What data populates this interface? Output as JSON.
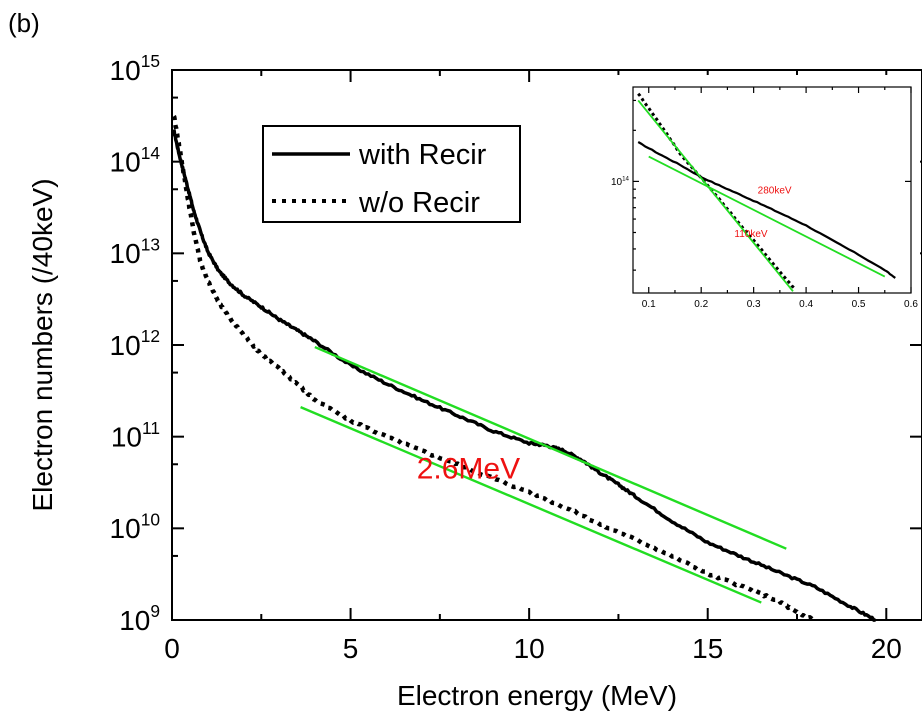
{
  "panel_label": "(b)",
  "colors": {
    "axis": "#000000",
    "fit": "#22dd22",
    "annotation": "#ee1111",
    "line": "#000000"
  },
  "chart_data": [
    {
      "type": "line",
      "xlabel": "Electron energy (MeV)",
      "ylabel": "Electron numbers (/40keV)",
      "xlim": [
        0,
        21
      ],
      "ylim": [
        1000000000.0,
        1000000000000000.0
      ],
      "yscale": "log",
      "x_ticks": [
        {
          "value": 0,
          "label": "0"
        },
        {
          "value": 5,
          "label": "5"
        },
        {
          "value": 10,
          "label": "10"
        },
        {
          "value": 15,
          "label": "15"
        },
        {
          "value": 20,
          "label": "20"
        }
      ],
      "y_ticks": [
        {
          "value": 1000000000.0,
          "base": "10",
          "exp": "9"
        },
        {
          "value": 10000000000.0,
          "base": "10",
          "exp": "10"
        },
        {
          "value": 100000000000.0,
          "base": "10",
          "exp": "11"
        },
        {
          "value": 1000000000000.0,
          "base": "10",
          "exp": "12"
        },
        {
          "value": 10000000000000.0,
          "base": "10",
          "exp": "13"
        },
        {
          "value": 100000000000000.0,
          "base": "10",
          "exp": "14"
        },
        {
          "value": 1000000000000000.0,
          "base": "10",
          "exp": "15"
        }
      ],
      "legend": {
        "placement": "upper-left",
        "entries": [
          "with Recir",
          "w/o Recir"
        ]
      },
      "series": [
        {
          "name": "with Recir",
          "style": "solid",
          "x": [
            0.05,
            0.2,
            0.4,
            0.6,
            0.8,
            1.0,
            1.3,
            1.6,
            2.0,
            2.5,
            3.0,
            3.5,
            4.0,
            5.0,
            6.0,
            7.0,
            8.0,
            9.0,
            10.0,
            10.5,
            11.0,
            11.5,
            12.0,
            12.5,
            13.0,
            14.0,
            15.0,
            16.0,
            17.0,
            18.0,
            19.0,
            19.7
          ],
          "y": [
            220000000000000.0,
            120000000000000.0,
            60000000000000.0,
            30000000000000.0,
            17000000000000.0,
            10500000000000.0,
            6500000000000.0,
            4800000000000.0,
            3500000000000.0,
            2600000000000.0,
            1900000000000.0,
            1450000000000.0,
            1100000000000.0,
            600000000000.0,
            380000000000.0,
            250000000000.0,
            170000000000.0,
            115000000000.0,
            85000000000.0,
            80000000000.0,
            70000000000.0,
            55000000000.0,
            40000000000.0,
            30000000000.0,
            22000000000.0,
            12000000000.0,
            7000000000.0,
            4800000000.0,
            3300000000.0,
            2300000000.0,
            1400000000.0,
            1000000000.0
          ]
        },
        {
          "name": "w/o Recir",
          "style": "dotted",
          "x": [
            0.05,
            0.2,
            0.4,
            0.6,
            0.8,
            1.0,
            1.3,
            1.6,
            2.0,
            2.5,
            3.0,
            3.5,
            4.0,
            5.0,
            6.0,
            7.0,
            8.0,
            9.0,
            10.0,
            11.0,
            12.0,
            13.0,
            14.0,
            15.0,
            16.0,
            17.0,
            17.5,
            18.0
          ],
          "y": [
            320000000000000.0,
            150000000000000.0,
            50000000000000.0,
            18000000000000.0,
            8000000000000.0,
            5000000000000.0,
            3000000000000.0,
            2000000000000.0,
            1300000000000.0,
            800000000000.0,
            550000000000.0,
            380000000000.0,
            250000000000.0,
            150000000000.0,
            100000000000.0,
            70000000000.0,
            50000000000.0,
            35000000000.0,
            25000000000.0,
            17000000000.0,
            11000000000.0,
            7500000000.0,
            5000000000.0,
            3200000000.0,
            2300000000.0,
            1600000000.0,
            1200000000.0,
            1000000000.0
          ]
        }
      ],
      "fit_lines": [
        {
          "x": [
            4,
            17.2
          ],
          "y": [
            950000000000.0,
            6000000000.0
          ]
        },
        {
          "x": [
            3.6,
            16.5
          ],
          "y": [
            210000000000.0,
            1550000000.0
          ]
        }
      ],
      "annotations": [
        {
          "text": "2.6MeV",
          "x": 8.3,
          "y": 35000000000.0
        }
      ]
    },
    {
      "type": "line",
      "inset": true,
      "xlim": [
        0.07,
        0.6
      ],
      "ylim": [
        22000000000000.0,
        360000000000000.0
      ],
      "yscale": "log",
      "x_ticks": [
        {
          "value": 0.1,
          "label": "0.1"
        },
        {
          "value": 0.2,
          "label": "0.2"
        },
        {
          "value": 0.3,
          "label": "0.3"
        },
        {
          "value": 0.4,
          "label": "0.4"
        },
        {
          "value": 0.5,
          "label": "0.5"
        },
        {
          "value": 0.6,
          "label": "0.6"
        }
      ],
      "y_ticks": [
        {
          "value": 100000000000000.0,
          "base": "10",
          "exp": "14"
        }
      ],
      "series": [
        {
          "name": "with Recir",
          "style": "solid",
          "x": [
            0.08,
            0.12,
            0.16,
            0.2,
            0.24,
            0.28,
            0.32,
            0.36,
            0.4,
            0.45,
            0.5,
            0.55,
            0.57
          ],
          "y": [
            170000000000000.0,
            145000000000000.0,
            125000000000000.0,
            106000000000000.0,
            93000000000000.0,
            82000000000000.0,
            72000000000000.0,
            63000000000000.0,
            55000000000000.0,
            45000000000000.0,
            37000000000000.0,
            30000000000000.0,
            27000000000000.0
          ]
        },
        {
          "name": "w/o Recir",
          "style": "dotted",
          "x": [
            0.08,
            0.1,
            0.13,
            0.16,
            0.2,
            0.24,
            0.28,
            0.32,
            0.36,
            0.38
          ],
          "y": [
            330000000000000.0,
            270000000000000.0,
            200000000000000.0,
            145000000000000.0,
            105000000000000.0,
            75000000000000.0,
            53000000000000.0,
            38000000000000.0,
            27000000000000.0,
            23000000000000.0
          ]
        }
      ],
      "fit_lines": [
        {
          "x": [
            0.1,
            0.55
          ],
          "y": [
            140000000000000.0,
            27500000000000.0
          ]
        },
        {
          "x": [
            0.08,
            0.375
          ],
          "y": [
            300000000000000.0,
            22500000000000.0
          ]
        }
      ],
      "annotations": [
        {
          "text": "280keV",
          "x": 0.34,
          "y": 85000000000000.0
        },
        {
          "text": "110keV",
          "x": 0.295,
          "y": 47000000000000.0
        }
      ]
    }
  ]
}
